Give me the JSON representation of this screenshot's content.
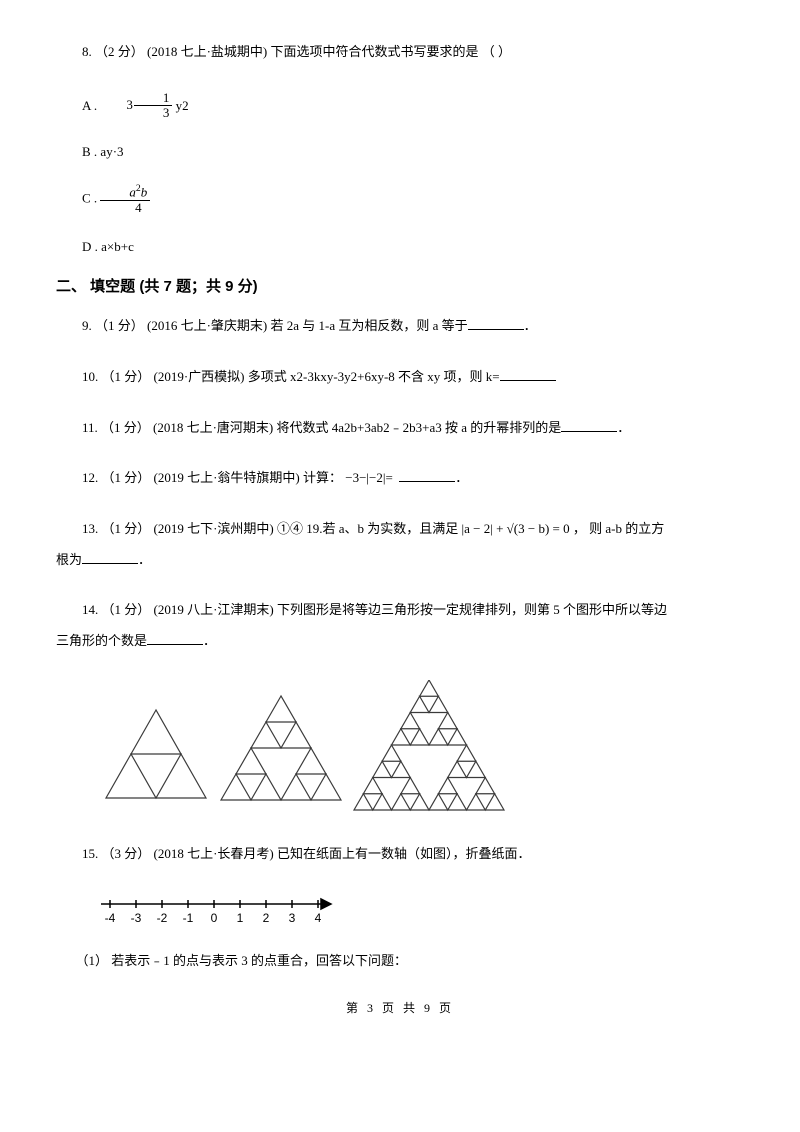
{
  "q8": {
    "prefix": "8. （2 分） (2018 七上·盐城期中) 下面选项中符合代数式书写要求的是 （    ）",
    "optA_prefix": "A . ",
    "optA_suffix": " y2",
    "optB": "B .  ay·3",
    "optC_prefix": "C . ",
    "optD": "D .  a×b+c"
  },
  "section2": "二、 填空题 (共 7 题；共 9 分)",
  "q9": "9. （1 分） (2016 七上·肇庆期末) 若 2a 与 1-a 互为相反数，则 a 等于",
  "q9_end": "．",
  "q10": "10. （1 分） (2019·广西模拟) 多项式 x2-3kxy-3y2+6xy-8 不含 xy 项，则 k=",
  "q11": "11. （1 分） (2018 七上·唐河期末) 将代数式 4a2b+3ab2﹣2b3+a3 按 a 的升幂排列的是",
  "q11_end": "．",
  "q12_pre": "12. （1 分） (2019 七上·翁牛特旗期中) 计算：",
  "q12_math": "−3−|−2|=",
  "q12_end": "．",
  "q13_pre": "13. （1 分） (2019 七下·滨州期中) ①④ 19.若 a、b 为实数，且满足 ",
  "q13_math": "|a − 2| + √(3 − b) = 0",
  "q13_mid": " ， 则 a-b 的立方",
  "q13_line2": "根为",
  "q13_end": "．",
  "q14_a": "14. （1 分） (2019 八上·江津期末) 下列图形是将等边三角形按一定规律排列，则第 5 个图形中所以等边",
  "q14_b": "三角形的个数是",
  "q14_end": "．",
  "q15": "15. （3 分） (2018 七上·长春月考) 已知在纸面上有一数轴（如图），折叠纸面．",
  "q15_1": "（1） 若表示﹣1 的点与表示 3 的点重合，回答以下问题：",
  "footer": "第 3 页 共 9 页",
  "numline": {
    "ticks": [
      "-4",
      "-3",
      "-2",
      "-1",
      "0",
      "1",
      "2",
      "3",
      "4"
    ]
  },
  "colors": {
    "text": "#000000",
    "bg": "#ffffff",
    "line": "#3b3b3b"
  }
}
